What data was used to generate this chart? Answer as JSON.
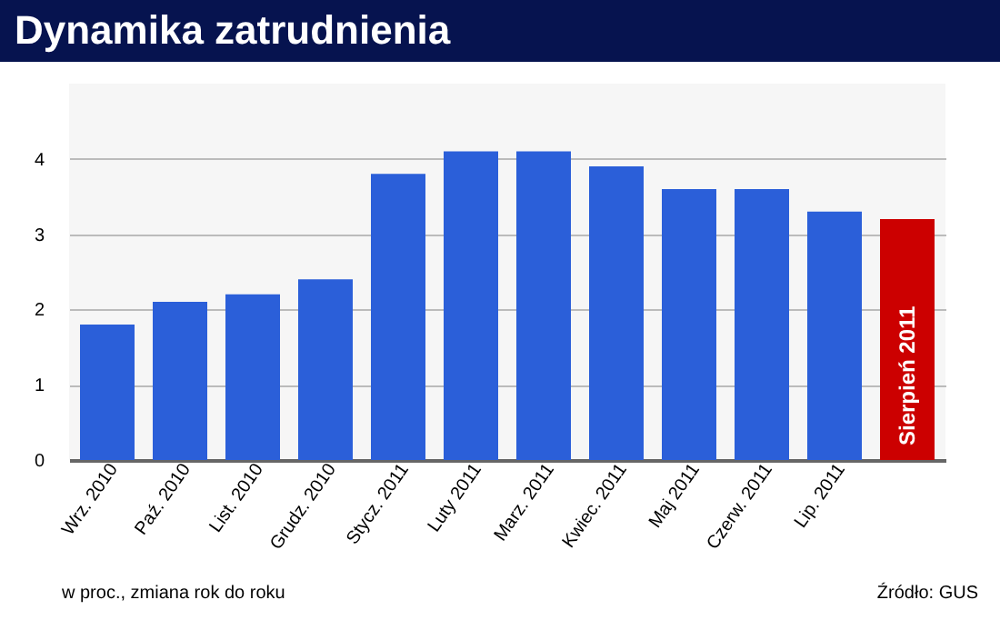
{
  "chart_data": {
    "type": "bar",
    "title": "Dynamika zatrudnienia",
    "categories": [
      "Wrz. 2010",
      "Paź. 2010",
      "List. 2010",
      "Grudz. 2010",
      "Stycz. 2011",
      "Luty 2011",
      "Marz. 2011",
      "Kwiec. 2011",
      "Maj 2011",
      "Czerw. 2011",
      "Lip. 2011",
      "Sierpień 2011"
    ],
    "values": [
      1.8,
      2.1,
      2.2,
      2.4,
      3.8,
      4.1,
      4.1,
      3.9,
      3.6,
      3.6,
      3.3,
      3.2
    ],
    "colors": [
      "#2b5fd9",
      "#2b5fd9",
      "#2b5fd9",
      "#2b5fd9",
      "#2b5fd9",
      "#2b5fd9",
      "#2b5fd9",
      "#2b5fd9",
      "#2b5fd9",
      "#2b5fd9",
      "#2b5fd9",
      "#cc0000"
    ],
    "ylim": [
      0,
      5
    ],
    "yticks": [
      0,
      1,
      2,
      3,
      4
    ],
    "grid": "y",
    "annotations": [
      "w proc., zmiana rok do roku",
      "Źródło: GUS"
    ]
  }
}
